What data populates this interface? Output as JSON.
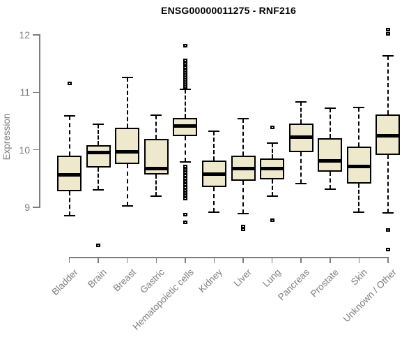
{
  "header": {
    "title": "ENSG00000011275 - RNF216"
  },
  "colors": {
    "box_fill": "#EEE8CD",
    "box_border": "#000000",
    "median": "#000000",
    "axis": "#7d7d7d",
    "background": "#ffffff"
  },
  "chart_data": {
    "type": "boxplot",
    "title": "ENSG00000011275 - RNF216",
    "xlabel": "",
    "ylabel": "Expression",
    "ylim": [
      8.2,
      12.2
    ],
    "yticks": [
      9,
      10,
      11,
      12
    ],
    "grid": false,
    "legend": null,
    "categories": [
      "Bladder",
      "Brain",
      "Breast",
      "Gastric",
      "Hematopoietic cells",
      "Kidney",
      "Liver",
      "Lung",
      "Pancreas",
      "Prostate",
      "Skin",
      "Unknown / Other"
    ],
    "boxes": [
      {
        "category": "Bladder",
        "whisker_low": 8.85,
        "q1": 9.28,
        "median": 9.56,
        "q3": 9.9,
        "whisker_high": 10.59,
        "outliers": [
          11.16
        ]
      },
      {
        "category": "Brain",
        "whisker_low": 9.3,
        "q1": 9.69,
        "median": 9.95,
        "q3": 10.08,
        "whisker_high": 10.44,
        "outliers": [
          8.34
        ]
      },
      {
        "category": "Breast",
        "whisker_low": 9.03,
        "q1": 9.75,
        "median": 9.96,
        "q3": 10.38,
        "whisker_high": 11.26,
        "outliers": []
      },
      {
        "category": "Gastric",
        "whisker_low": 9.19,
        "q1": 9.57,
        "median": 9.68,
        "q3": 10.19,
        "whisker_high": 10.6,
        "outliers": []
      },
      {
        "category": "Hematopoietic cells",
        "whisker_low": 9.79,
        "q1": 10.24,
        "median": 10.42,
        "q3": 10.56,
        "whisker_high": 11.05,
        "outliers": [
          11.81,
          11.56,
          11.49,
          11.44,
          11.39,
          11.34,
          11.3,
          11.26,
          11.22,
          11.18,
          11.14,
          11.1,
          9.71,
          9.65,
          9.6,
          9.55,
          9.5,
          9.45,
          9.4,
          9.35,
          9.3,
          9.25,
          9.2,
          9.15,
          8.87,
          8.74
        ]
      },
      {
        "category": "Kidney",
        "whisker_low": 8.92,
        "q1": 9.35,
        "median": 9.58,
        "q3": 9.81,
        "whisker_high": 10.32,
        "outliers": []
      },
      {
        "category": "Liver",
        "whisker_low": 8.89,
        "q1": 9.46,
        "median": 9.68,
        "q3": 9.9,
        "whisker_high": 10.54,
        "outliers": [
          8.66,
          8.62
        ]
      },
      {
        "category": "Lung",
        "whisker_low": 9.19,
        "q1": 9.48,
        "median": 9.68,
        "q3": 9.85,
        "whisker_high": 10.12,
        "outliers": [
          10.39,
          8.78
        ]
      },
      {
        "category": "Pancreas",
        "whisker_low": 9.41,
        "q1": 9.96,
        "median": 10.22,
        "q3": 10.46,
        "whisker_high": 10.83,
        "outliers": []
      },
      {
        "category": "Prostate",
        "whisker_low": 9.31,
        "q1": 9.62,
        "median": 9.81,
        "q3": 10.2,
        "whisker_high": 10.72,
        "outliers": []
      },
      {
        "category": "Skin",
        "whisker_low": 8.92,
        "q1": 9.41,
        "median": 9.71,
        "q3": 10.06,
        "whisker_high": 10.74,
        "outliers": []
      },
      {
        "category": "Unknown / Other",
        "whisker_low": 8.9,
        "q1": 9.91,
        "median": 10.25,
        "q3": 10.62,
        "whisker_high": 11.63,
        "outliers": [
          12.09,
          12.02,
          8.61,
          8.26
        ]
      }
    ]
  }
}
